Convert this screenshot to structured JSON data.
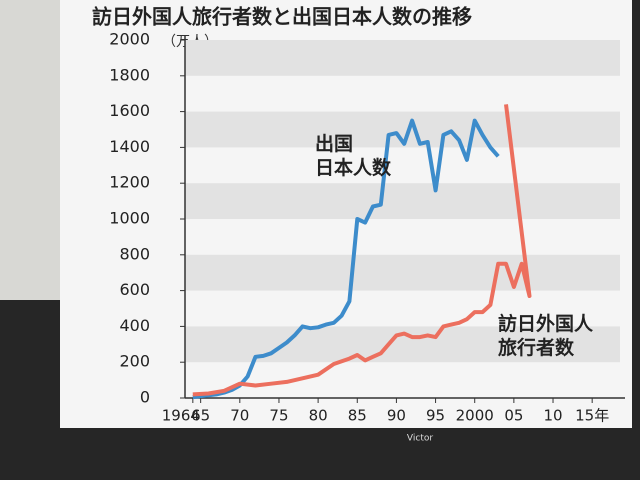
{
  "chart_data": {
    "type": "line",
    "title": "訪日外国人旅行者数と出国日本人数の推移",
    "y_unit": "（万人）",
    "brand": "Victor",
    "xlim": [
      1963,
      2016
    ],
    "xticks": [
      1964,
      {
        "value": 1965,
        "label": "65"
      },
      {
        "value": 1970,
        "label": "70"
      },
      {
        "value": 1975,
        "label": "75"
      },
      {
        "value": 1980,
        "label": "80"
      },
      {
        "value": 1985,
        "label": "85"
      },
      {
        "value": 1990,
        "label": "90"
      },
      {
        "value": 1995,
        "label": "95"
      },
      2000,
      {
        "value": 2005,
        "label": "05"
      },
      {
        "value": 2010,
        "label": "10"
      },
      {
        "value": 2015,
        "label": "15年"
      }
    ],
    "ylim": [
      0,
      2000
    ],
    "yticks": [
      0,
      200,
      400,
      600,
      800,
      1000,
      1200,
      1400,
      1600,
      1800,
      2000
    ],
    "grid": "bands",
    "series": [
      {
        "name": "出国\n日本人数",
        "color": "#3d8ccb",
        "x": [
          1964,
          1965,
          1966,
          1967,
          1968,
          1969,
          1970,
          1971,
          1972,
          1973,
          1974,
          1975,
          1976,
          1977,
          1978,
          1979,
          1980,
          1981,
          1982,
          1983,
          1984,
          1985,
          1986,
          1987,
          1988,
          1989,
          1990,
          1991,
          1992,
          1993,
          1994,
          1995,
          1996,
          1997,
          1998,
          1999,
          2000,
          2001,
          2002,
          2003
        ],
        "values": [
          5,
          10,
          15,
          20,
          30,
          45,
          70,
          120,
          230,
          235,
          250,
          280,
          310,
          350,
          400,
          390,
          395,
          410,
          420,
          460,
          540,
          1000,
          980,
          1070,
          1080,
          1470,
          1480,
          1420,
          1550,
          1420,
          1430,
          1160,
          1470,
          1490,
          1440,
          1330,
          1550,
          1470,
          1400,
          1350
        ]
      },
      {
        "name": "訪日外国人\n旅行者数",
        "color": "#ec6f5e",
        "x": [
          1964,
          1966,
          1968,
          1970,
          1972,
          1974,
          1976,
          1978,
          1980,
          1982,
          1984,
          1985,
          1986,
          1987,
          1988,
          1989,
          1990,
          1991,
          1992,
          1993,
          1994,
          1995,
          1996,
          1997,
          1998,
          1999,
          2000,
          2001,
          2002,
          2003,
          2004,
          2005,
          2006,
          2007,
          2004
        ],
        "values": [
          20,
          25,
          40,
          80,
          70,
          80,
          90,
          110,
          130,
          190,
          220,
          240,
          210,
          230,
          250,
          300,
          350,
          360,
          340,
          340,
          350,
          340,
          400,
          410,
          420,
          440,
          480,
          480,
          520,
          750,
          750,
          620,
          750,
          570,
          1640
        ]
      }
    ]
  }
}
